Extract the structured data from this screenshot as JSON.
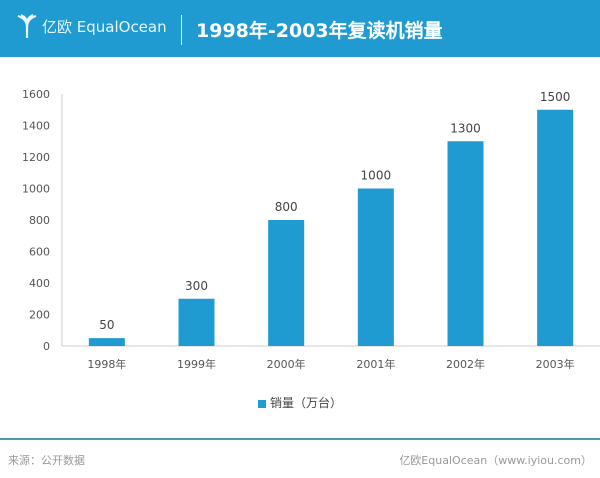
{
  "header": {
    "logo_text": "亿欧 EqualOcean",
    "title": "1998年-2003年复读机销量"
  },
  "chart_data": {
    "type": "bar",
    "title": "1998年-2003年复读机销量",
    "categories": [
      "1998年",
      "1999年",
      "2000年",
      "2001年",
      "2002年",
      "2003年"
    ],
    "series": [
      {
        "name": "销量（万台）",
        "values": [
          50,
          300,
          800,
          1000,
          1300,
          1500
        ]
      }
    ],
    "data_labels": [
      "50",
      "300",
      "800",
      "1000",
      "1300",
      "1500"
    ],
    "yticks": [
      "0",
      "200",
      "400",
      "600",
      "800",
      "1000",
      "1200",
      "1400",
      "1600"
    ],
    "ylim": [
      0,
      1600
    ],
    "xlabel": "",
    "ylabel": "",
    "legend": "bottom",
    "grid": false,
    "color": "#1f9bd2"
  },
  "footer": {
    "source": "来源：公开数据",
    "credit": "亿欧EqualOcean（www.iyiou.com）"
  }
}
